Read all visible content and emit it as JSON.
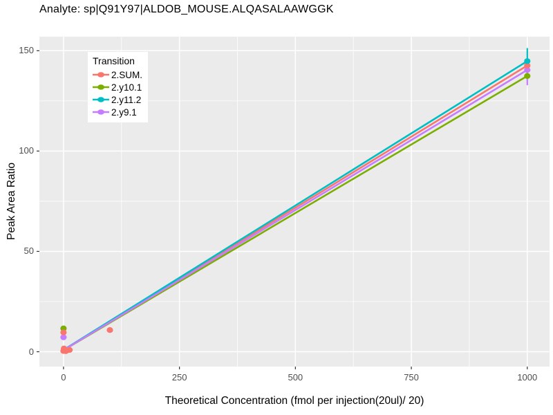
{
  "chart_data": {
    "type": "line",
    "title": "Analyte: sp|Q91Y97|ALDOB_MOUSE.ALQASALAAWGGK",
    "xlabel": "Theoretical Concentration (fmol per injection(20ul)/ 20)",
    "ylabel": "Peak Area Ratio",
    "xlim": [
      -52,
      1048
    ],
    "ylim": [
      -7.4,
      157
    ],
    "x_ticks": [
      0,
      250,
      500,
      750,
      1000
    ],
    "y_ticks": [
      0,
      50,
      100,
      150
    ],
    "panel_bg": "#EBEBEB",
    "grid_color": "#FFFFFF",
    "tick_color": "#333333",
    "tick_label_color": "#4D4D4D",
    "legend": {
      "title": "Transition",
      "position": "top-left-inside"
    },
    "series": [
      {
        "name": "2.SUM.",
        "color": "#F8766D",
        "line": {
          "x0": 0,
          "y0": 0.9,
          "x1": 1000,
          "y1": 142.6
        },
        "points": [
          [
            0,
            0.4
          ],
          [
            1,
            1.6
          ],
          [
            5,
            0.3
          ],
          [
            13,
            0.9
          ],
          [
            0,
            9.6
          ],
          [
            100,
            10.8
          ],
          [
            1000,
            142.6
          ]
        ],
        "error_bars": []
      },
      {
        "name": "2.y10.1",
        "color": "#7CAE00",
        "line": {
          "x0": 0,
          "y0": 0.8,
          "x1": 1000,
          "y1": 137.4
        },
        "points": [
          [
            0,
            11.6
          ],
          [
            1000,
            137.4
          ]
        ],
        "error_bars": []
      },
      {
        "name": "2.y11.2",
        "color": "#00BFC4",
        "line": {
          "x0": 0,
          "y0": 0.9,
          "x1": 1000,
          "y1": 144.8
        },
        "points": [
          [
            1000,
            144.8
          ]
        ],
        "error_bars": [
          {
            "x": 1000,
            "ylo": 140.0,
            "yhi": 151.3
          }
        ]
      },
      {
        "name": "2.y9.1",
        "color": "#C77CFF",
        "line": {
          "x0": 0,
          "y0": 0.8,
          "x1": 1000,
          "y1": 140.4
        },
        "points": [
          [
            0,
            7.2
          ],
          [
            1000,
            140.4
          ]
        ],
        "error_bars": [
          {
            "x": 1000,
            "ylo": 132.8,
            "yhi": 146.0
          }
        ]
      }
    ]
  }
}
